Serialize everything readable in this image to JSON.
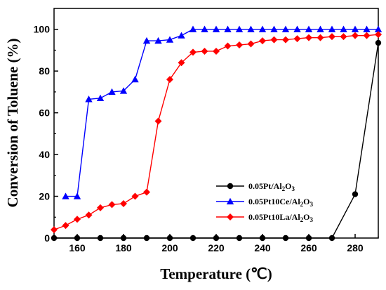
{
  "chart_data": {
    "type": "line",
    "xlabel": "Temperature (℃)",
    "ylabel": "Conversion of Toluene (%)",
    "xlim": [
      150,
      290
    ],
    "ylim": [
      0,
      110
    ],
    "xticks": [
      160,
      180,
      200,
      220,
      240,
      260,
      280
    ],
    "yticks": [
      0,
      20,
      40,
      60,
      80,
      100
    ],
    "legend_position": "lower-right",
    "grid": false,
    "series": [
      {
        "name": "0.05Pt/Al2O3",
        "label_parts": {
          "main": "0.05Pt/Al",
          "sub1": "2",
          "mid": "O",
          "sub2": "3"
        },
        "color": "#000000",
        "marker": "circle",
        "x": [
          150,
          160,
          170,
          180,
          190,
          200,
          210,
          220,
          230,
          240,
          250,
          260,
          270,
          280,
          290
        ],
        "y": [
          0,
          0,
          0,
          0,
          0,
          0,
          0,
          0,
          0,
          0,
          0,
          0,
          0,
          21,
          93.5
        ]
      },
      {
        "name": "0.05Pt10Ce/Al2O3",
        "label_parts": {
          "main": "0.05Pt10Ce/Al",
          "sub1": "2",
          "mid": "O",
          "sub2": "3"
        },
        "color": "#0000ff",
        "marker": "triangle",
        "x": [
          155,
          160,
          165,
          170,
          175,
          180,
          185,
          190,
          195,
          200,
          205,
          210,
          215,
          220,
          225,
          230,
          235,
          240,
          245,
          250,
          255,
          260,
          265,
          270,
          275,
          280,
          285,
          290
        ],
        "y": [
          20,
          20,
          66.5,
          67,
          70,
          70.5,
          76,
          94.5,
          94.5,
          95,
          97,
          100,
          100,
          100,
          100,
          100,
          100,
          100,
          100,
          100,
          100,
          100,
          100,
          100,
          100,
          100,
          100,
          100
        ]
      },
      {
        "name": "0.05Pt10La/Al2O3",
        "label_parts": {
          "main": "0.05Pt10La/Al",
          "sub1": "2",
          "mid": "O",
          "sub2": "3"
        },
        "color": "#ff0000",
        "marker": "diamond",
        "x": [
          150,
          155,
          160,
          165,
          170,
          175,
          180,
          185,
          190,
          195,
          200,
          205,
          210,
          215,
          220,
          225,
          230,
          235,
          240,
          245,
          250,
          255,
          260,
          265,
          270,
          275,
          280,
          285,
          290
        ],
        "y": [
          4,
          6,
          9,
          11,
          14.5,
          16,
          16.5,
          20,
          22,
          56,
          76,
          84,
          89,
          89.5,
          89.5,
          92,
          92.5,
          93,
          94.5,
          95,
          95,
          95.5,
          96,
          96,
          96.5,
          96.5,
          97,
          97,
          97.5
        ]
      }
    ]
  }
}
